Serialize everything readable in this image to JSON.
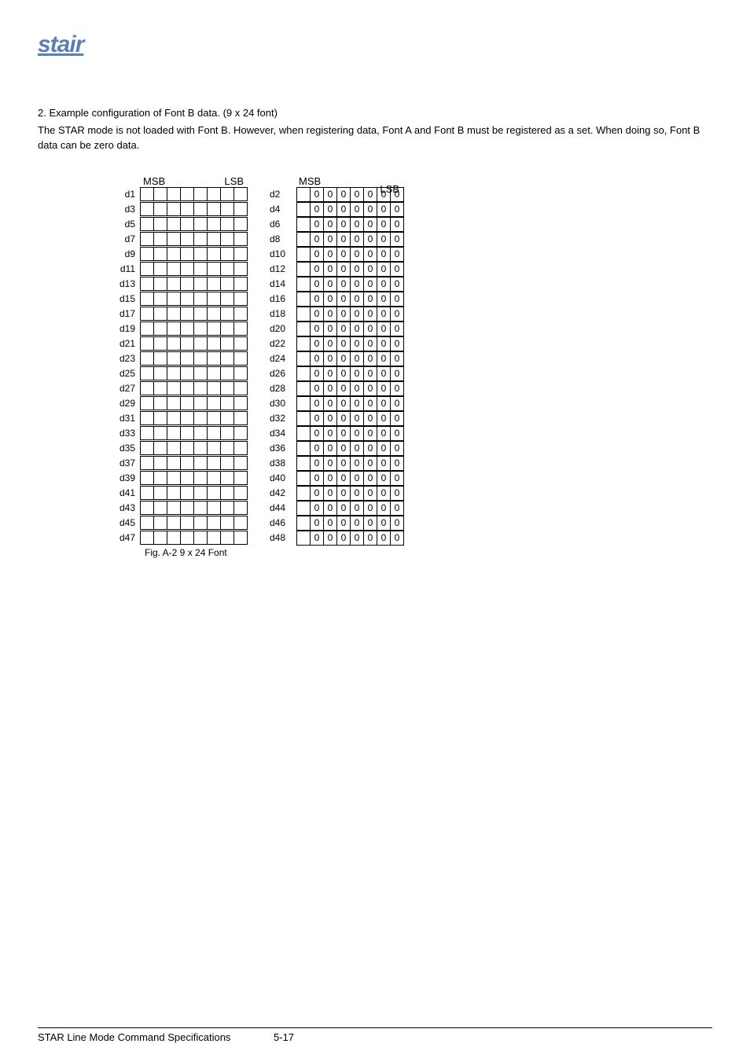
{
  "logo_text": "stair",
  "p1": "2. Example configuration of Font B data.  (9 x 24 font)",
  "p2": "The STAR mode is not loaded with Font B.  However, when registering data, Font A and Font B must be registered as a set.  When doing so, Font B data can be zero data.",
  "hdr": {
    "msb": "MSB",
    "lsb": "LSB"
  },
  "left_labels": [
    "d1",
    "d3",
    "d5",
    "d7",
    "d9",
    "d11",
    "d13",
    "d15",
    "d17",
    "d19",
    "d21",
    "d23",
    "d25",
    "d27",
    "d29",
    "d31",
    "d33",
    "d35",
    "d37",
    "d39",
    "d41",
    "d43",
    "d45",
    "d47"
  ],
  "right_labels": [
    "d2",
    "d4",
    "d6",
    "d8",
    "d10",
    "d12",
    "d14",
    "d16",
    "d18",
    "d20",
    "d22",
    "d24",
    "d26",
    "d28",
    "d30",
    "d32",
    "d34",
    "d36",
    "d38",
    "d40",
    "d42",
    "d44",
    "d46",
    "d48"
  ],
  "right_cells": [
    "",
    "0",
    "0",
    "0",
    "0",
    "0",
    "0",
    "0"
  ],
  "caption": "Fig. A-2 9 x 24 Font",
  "footer_title": "STAR Line Mode Command Specifications",
  "footer_page": "5-17"
}
